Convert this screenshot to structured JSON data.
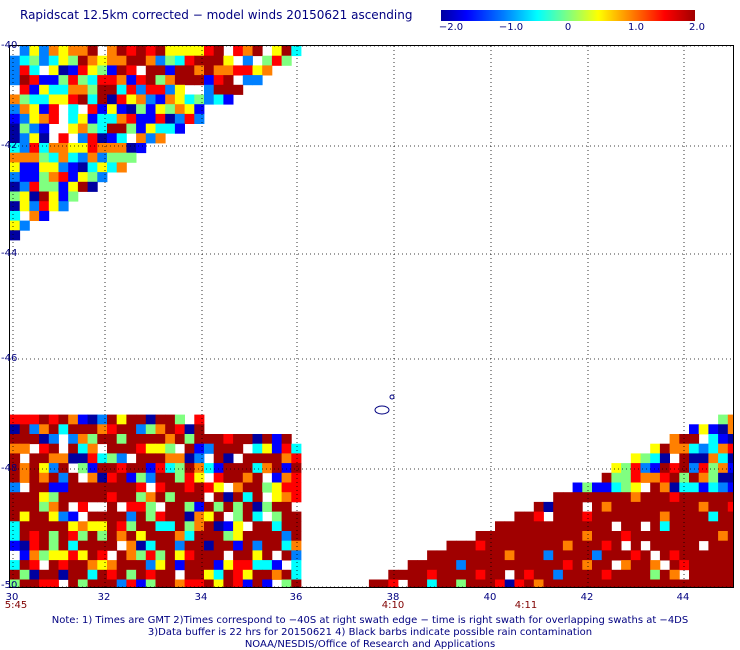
{
  "title": "Rapidscat 12.5km corrected − model winds 20150621 ascending",
  "colorbar": {
    "ticks": [
      "−2.0",
      "−1.0",
      "0",
      "1.0",
      "2.0"
    ],
    "colors": [
      "#0000a0",
      "#0000ff",
      "#0080ff",
      "#00ffff",
      "#80ff80",
      "#ffff00",
      "#ff8000",
      "#ff0000",
      "#a00000"
    ]
  },
  "map": {
    "lon_range": [
      30,
      45
    ],
    "lat_range": [
      -50,
      -40
    ],
    "lon_ticks": [
      "30",
      "32",
      "34",
      "36",
      "38",
      "40",
      "42",
      "44"
    ],
    "lat_ticks": [
      "-40",
      "-42",
      "-44",
      "-46",
      "-48",
      "-50"
    ],
    "time_labels": [
      {
        "lon": 30,
        "text": "5:45"
      },
      {
        "lon": 38,
        "text": "4:10"
      },
      {
        "lon": 40.8,
        "text": "4:11"
      }
    ]
  },
  "notes": [
    "Note: 1) Times are GMT 2)Times correspond to −40S at right swath edge − time is right swath for overlapping swaths at −4DS",
    "3)Data buffer is 22 hrs for 20150621 4) Black barbs indicate possible rain contamination",
    "NOAA/NESDIS/Office of Research and Applications"
  ]
}
